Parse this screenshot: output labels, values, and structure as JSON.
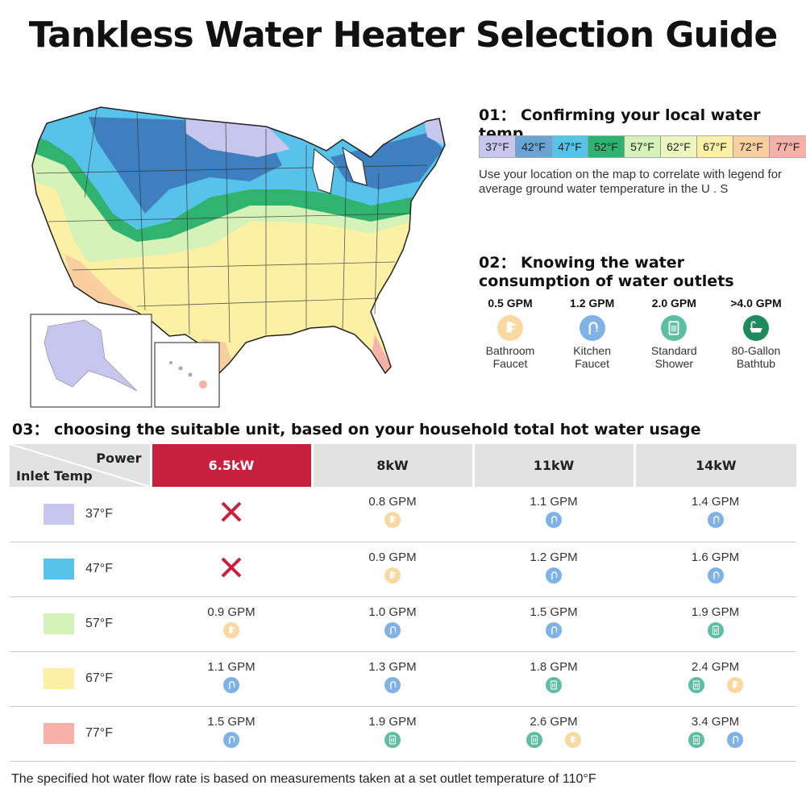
{
  "title": "Tankless Water Heater Selection Guide",
  "section1": {
    "heading": "01： Confirming your local water temp",
    "legend": [
      {
        "label": "37°F",
        "color": "#c6c6ee"
      },
      {
        "label": "42°F",
        "color": "#6aa3d6"
      },
      {
        "label": "47°F",
        "color": "#58c3ea"
      },
      {
        "label": "52°F",
        "color": "#2fb36e"
      },
      {
        "label": "57°F",
        "color": "#d5f2b8"
      },
      {
        "label": "62°F",
        "color": "#eef6c0"
      },
      {
        "label": "67°F",
        "color": "#fbf0a3"
      },
      {
        "label": "72°F",
        "color": "#f9cfa0"
      },
      {
        "label": "77°F",
        "color": "#f7b1a8"
      }
    ],
    "description": "Use your location on the map to correlate with legend for average ground water temperature in the U . S"
  },
  "section2": {
    "heading": "02： Knowing the water consumption of water outlets",
    "outlets": [
      {
        "gpm": "0.5 GPM",
        "label": "Bathroom Faucet",
        "icon": "bathroom-faucet-icon",
        "color": "#f9d9a0"
      },
      {
        "gpm": "1.2 GPM",
        "label": "Kitchen Faucet",
        "icon": "kitchen-faucet-icon",
        "color": "#7fb3e8"
      },
      {
        "gpm": "2.0 GPM",
        "label": "Standard Shower",
        "icon": "shower-icon",
        "color": "#5dbf9f"
      },
      {
        "gpm": ">4.0 GPM",
        "label": "80-Gallon Bathtub",
        "icon": "bathtub-icon",
        "color": "#1f8a5c"
      }
    ]
  },
  "section3": {
    "heading": "03： choosing the suitable unit, based on your household total hot water usage",
    "corner_power": "Power",
    "corner_inlet": "Inlet Temp",
    "columns": [
      "6.5kW",
      "8kW",
      "11kW",
      "14kW"
    ],
    "rows": [
      {
        "temp": "37°F",
        "color": "#c6c6ee",
        "cells": [
          {
            "gpm": "",
            "icons": [],
            "cross": true
          },
          {
            "gpm": "0.8 GPM",
            "icons": [
              "bathroom"
            ]
          },
          {
            "gpm": "1.1 GPM",
            "icons": [
              "kitchen"
            ]
          },
          {
            "gpm": "1.4 GPM",
            "icons": [
              "kitchen"
            ]
          }
        ]
      },
      {
        "temp": "47°F",
        "color": "#58c3ea",
        "cells": [
          {
            "gpm": "",
            "icons": [],
            "cross": true
          },
          {
            "gpm": "0.9 GPM",
            "icons": [
              "bathroom"
            ]
          },
          {
            "gpm": "1.2 GPM",
            "icons": [
              "kitchen"
            ]
          },
          {
            "gpm": "1.6 GPM",
            "icons": [
              "kitchen"
            ]
          }
        ]
      },
      {
        "temp": "57°F",
        "color": "#d5f2b8",
        "cells": [
          {
            "gpm": "0.9 GPM",
            "icons": [
              "bathroom"
            ]
          },
          {
            "gpm": "1.0 GPM",
            "icons": [
              "kitchen"
            ]
          },
          {
            "gpm": "1.5 GPM",
            "icons": [
              "kitchen"
            ]
          },
          {
            "gpm": "1.9 GPM",
            "icons": [
              "shower"
            ]
          }
        ]
      },
      {
        "temp": "67°F",
        "color": "#fbf0a3",
        "cells": [
          {
            "gpm": "1.1 GPM",
            "icons": [
              "kitchen"
            ]
          },
          {
            "gpm": "1.3 GPM",
            "icons": [
              "kitchen"
            ]
          },
          {
            "gpm": "1.8 GPM",
            "icons": [
              "shower"
            ]
          },
          {
            "gpm": "2.4 GPM",
            "icons": [
              "shower",
              "bathroom"
            ]
          }
        ]
      },
      {
        "temp": "77°F",
        "color": "#f7b1a8",
        "cells": [
          {
            "gpm": "1.5 GPM",
            "icons": [
              "kitchen"
            ]
          },
          {
            "gpm": "1.9 GPM",
            "icons": [
              "shower"
            ]
          },
          {
            "gpm": "2.6 GPM",
            "icons": [
              "shower",
              "bathroom"
            ]
          },
          {
            "gpm": "3.4 GPM",
            "icons": [
              "shower",
              "kitchen"
            ]
          }
        ]
      }
    ]
  },
  "footer": "The specified hot water flow rate is based on measurements taken at a set outlet temperature of 110°F"
}
